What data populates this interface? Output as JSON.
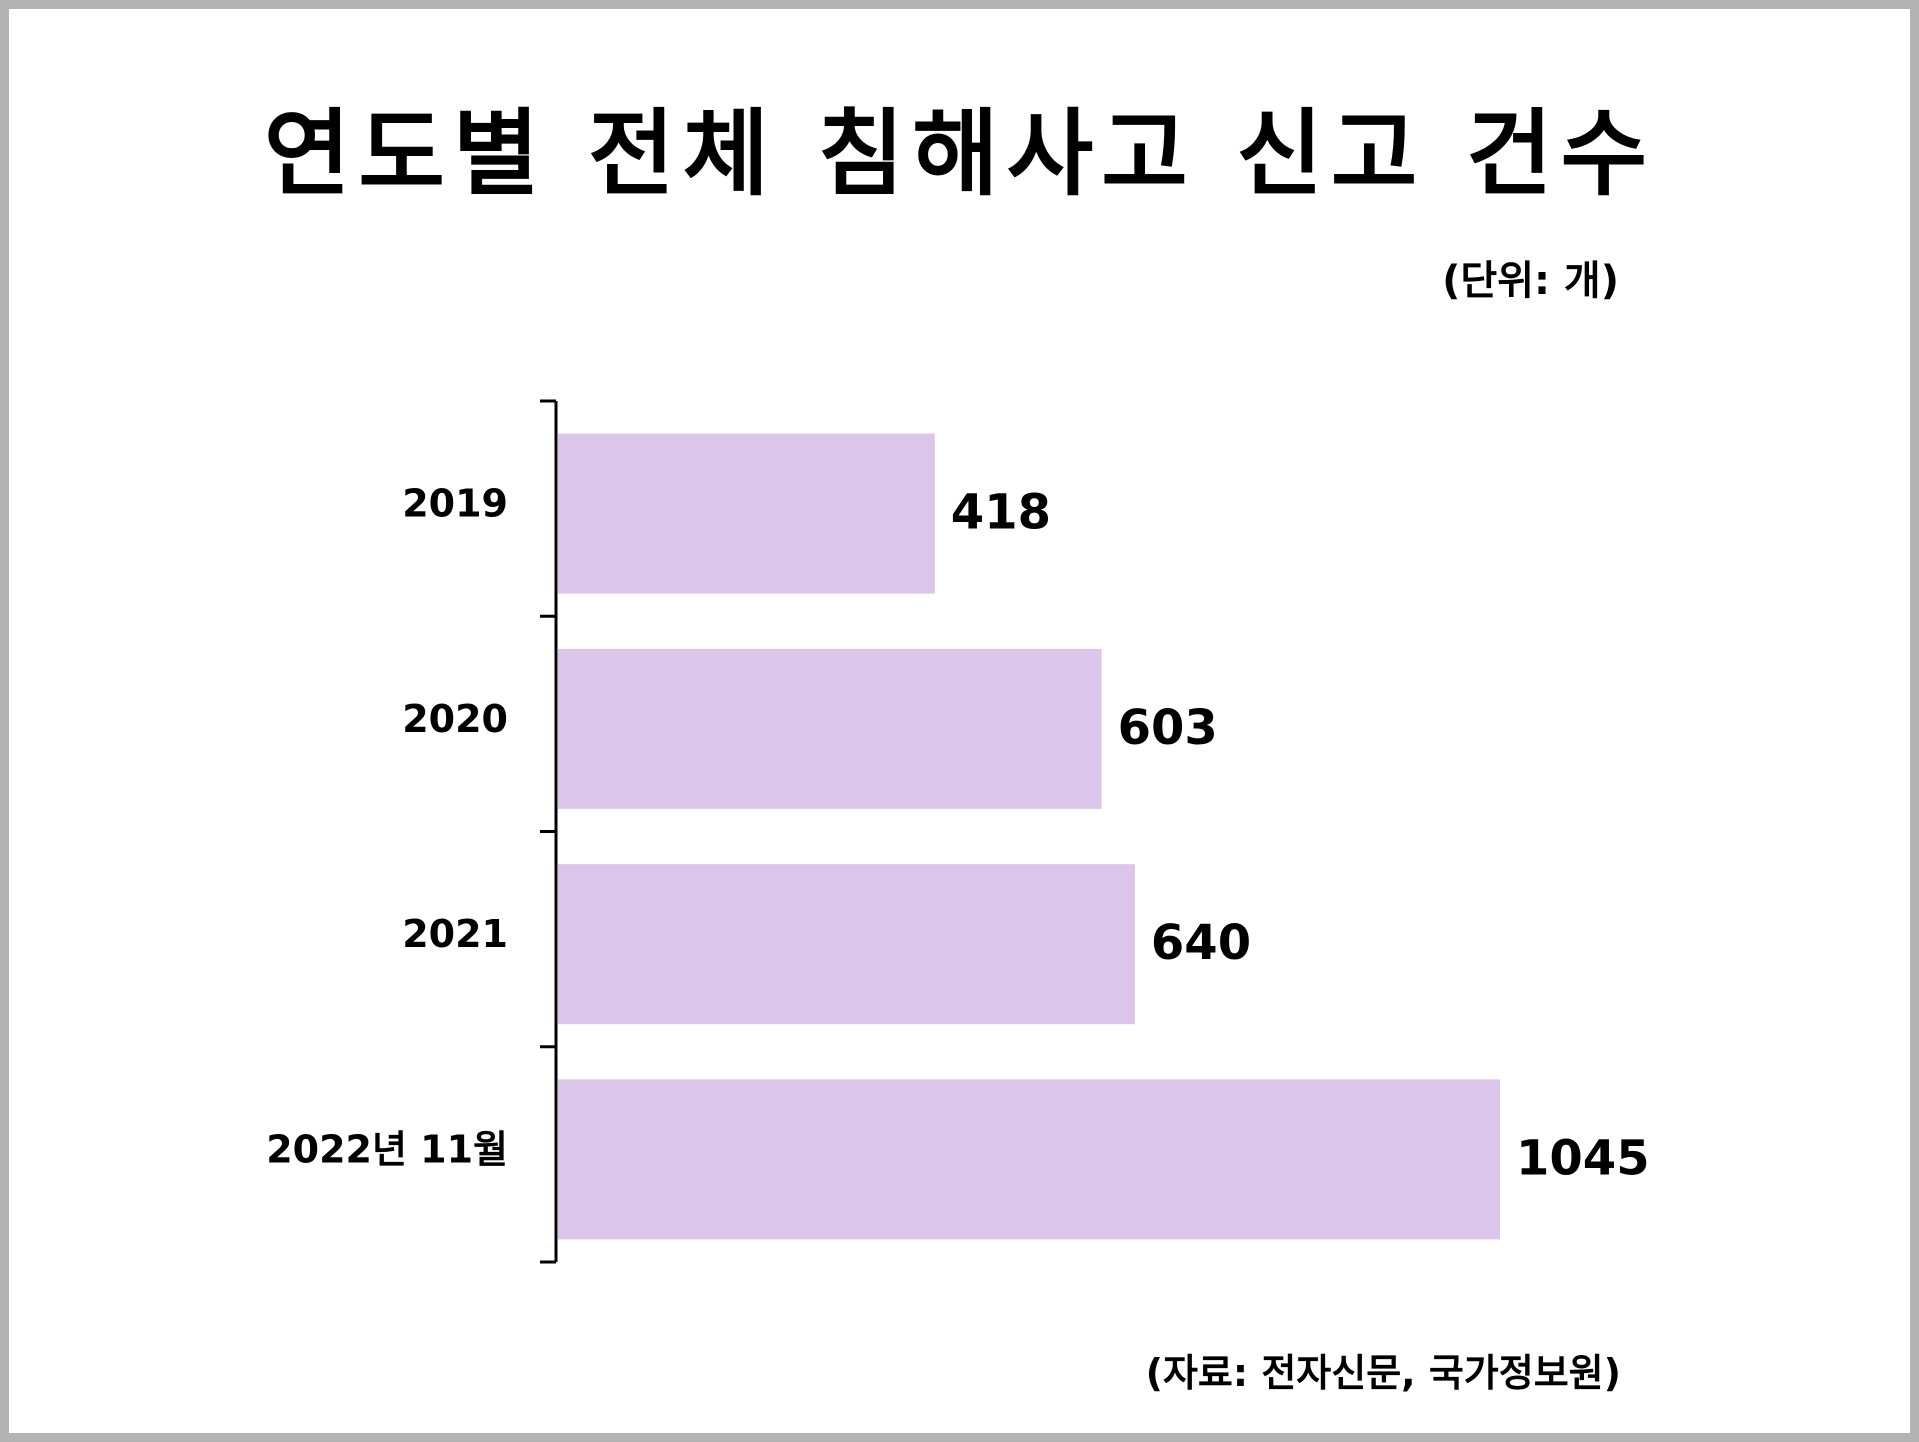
{
  "chart_data": {
    "type": "bar",
    "orientation": "horizontal",
    "title": "연도별 전체 침해사고 신고 건수",
    "unit_label": "(단위: 개)",
    "source": "(자료: 전자신문, 국가정보원)",
    "categories": [
      "2019",
      "2020",
      "2021",
      "2022년 11월"
    ],
    "values": [
      418,
      603,
      640,
      1045
    ],
    "xlim": [
      0,
      1045
    ],
    "grid": false,
    "legend": "none",
    "colors": {
      "bar": "#dbc5eb",
      "axis": "#000000",
      "text": "#000000",
      "border": "#b3b3b3"
    }
  }
}
